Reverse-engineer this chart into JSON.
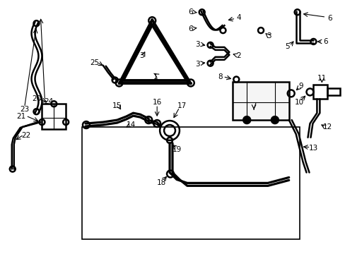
{
  "background_color": "#ffffff",
  "line_color": "#000000",
  "line_width": 1.8,
  "fig_width": 4.89,
  "fig_height": 3.6,
  "dpi": 100
}
